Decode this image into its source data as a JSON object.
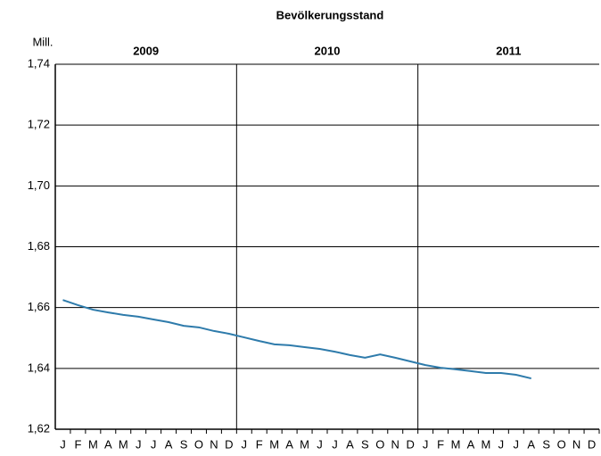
{
  "chart_data": {
    "type": "line",
    "title": "Bevölkerungsstand",
    "y_unit": "Mill.",
    "x_groups": [
      "2009",
      "2010",
      "2011"
    ],
    "categories": [
      "J",
      "F",
      "M",
      "A",
      "M",
      "J",
      "J",
      "A",
      "S",
      "O",
      "N",
      "D",
      "J",
      "F",
      "M",
      "A",
      "M",
      "J",
      "J",
      "A",
      "S",
      "O",
      "N",
      "D",
      "J",
      "F",
      "M",
      "A",
      "M",
      "J",
      "J",
      "A",
      "S",
      "O",
      "N",
      "D"
    ],
    "series": [
      {
        "name": "Bevölkerungsstand",
        "color": "#2e7bab",
        "values": [
          1.6625,
          1.6608,
          1.6593,
          1.6584,
          1.6576,
          1.657,
          1.6561,
          1.6552,
          1.654,
          1.6535,
          1.6523,
          1.6514,
          1.6502,
          1.649,
          1.6479,
          1.6476,
          1.647,
          1.6464,
          1.6455,
          1.6444,
          1.6435,
          1.6446,
          1.6435,
          1.6423,
          1.6411,
          1.6402,
          1.6397,
          1.6391,
          1.6385,
          1.6385,
          1.6379,
          1.6367,
          null,
          null,
          null,
          null
        ]
      }
    ],
    "ylim": [
      1.62,
      1.74
    ],
    "yticks": [
      {
        "value": 1.62,
        "label": "1,62"
      },
      {
        "value": 1.64,
        "label": "1,64"
      },
      {
        "value": 1.66,
        "label": "1,66"
      },
      {
        "value": 1.68,
        "label": "1,68"
      },
      {
        "value": 1.7,
        "label": "1,70"
      },
      {
        "value": 1.72,
        "label": "1,72"
      },
      {
        "value": 1.74,
        "label": "1,74"
      }
    ],
    "grid": true
  }
}
